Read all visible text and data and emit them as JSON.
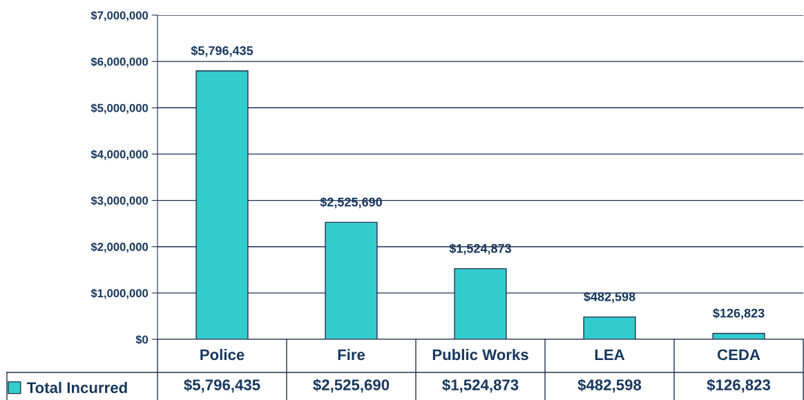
{
  "chart_data": {
    "type": "bar",
    "categories": [
      "Police",
      "Fire",
      "Public Works",
      "LEA",
      "CEDA"
    ],
    "series": [
      {
        "name": "Total Incurred",
        "color": "#33cccc",
        "values": [
          5796435,
          2525690,
          1524873,
          482598,
          126823
        ]
      }
    ],
    "value_labels": [
      "$5,796,435",
      "$2,525,690",
      "$1,524,873",
      "$482,598",
      "$126,823"
    ],
    "ylim": [
      0,
      7000000
    ],
    "yticks": [
      {
        "value": 0,
        "label": "$0"
      },
      {
        "value": 1000000,
        "label": "$1,000,000"
      },
      {
        "value": 2000000,
        "label": "$2,000,000"
      },
      {
        "value": 3000000,
        "label": "$3,000,000"
      },
      {
        "value": 4000000,
        "label": "$4,000,000"
      },
      {
        "value": 5000000,
        "label": "$5,000,000"
      },
      {
        "value": 6000000,
        "label": "$6,000,000"
      },
      {
        "value": 7000000,
        "label": "$7,000,000"
      }
    ],
    "grid": "y",
    "legend": "bottom left"
  }
}
